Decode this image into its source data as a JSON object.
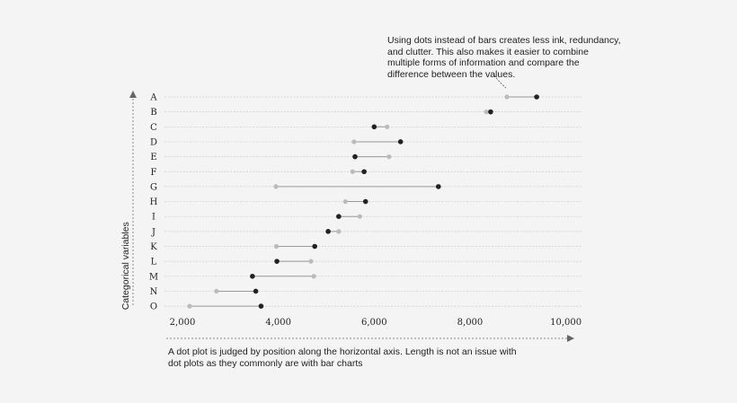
{
  "chart_data": {
    "type": "dot",
    "categories": [
      "A",
      "B",
      "C",
      "D",
      "E",
      "F",
      "G",
      "H",
      "I",
      "J",
      "K",
      "L",
      "M",
      "N",
      "O"
    ],
    "series": [
      {
        "color": "#bbbbbb",
        "values": [
          8770,
          8340,
          6270,
          5580,
          6310,
          5550,
          3950,
          5400,
          5700,
          5260,
          3960,
          4680,
          4740,
          2710,
          2150
        ]
      },
      {
        "color": "#222222",
        "values": [
          9390,
          8430,
          6000,
          6550,
          5600,
          5790,
          7340,
          5820,
          5260,
          5040,
          4760,
          3970,
          3460,
          3530,
          3640
        ]
      }
    ],
    "xlim": [
      1650,
      10400
    ],
    "xticks": [
      2000,
      4000,
      6000,
      8000,
      10000
    ],
    "xtick_labels": [
      "2,000",
      "4,000",
      "6,000",
      "8,000",
      "10,000"
    ],
    "ylabel": "Categorical variables",
    "grid": true,
    "annotations": {
      "top": "Using dots instead of bars creates less ink, redundancy, and clutter. This also makes it easier to combine multiple forms of information and compare the difference between the values.",
      "bottom": "A dot plot is judged by position along the horizontal axis. Length is not an issue with dot plots as they commonly are with bar charts"
    }
  }
}
